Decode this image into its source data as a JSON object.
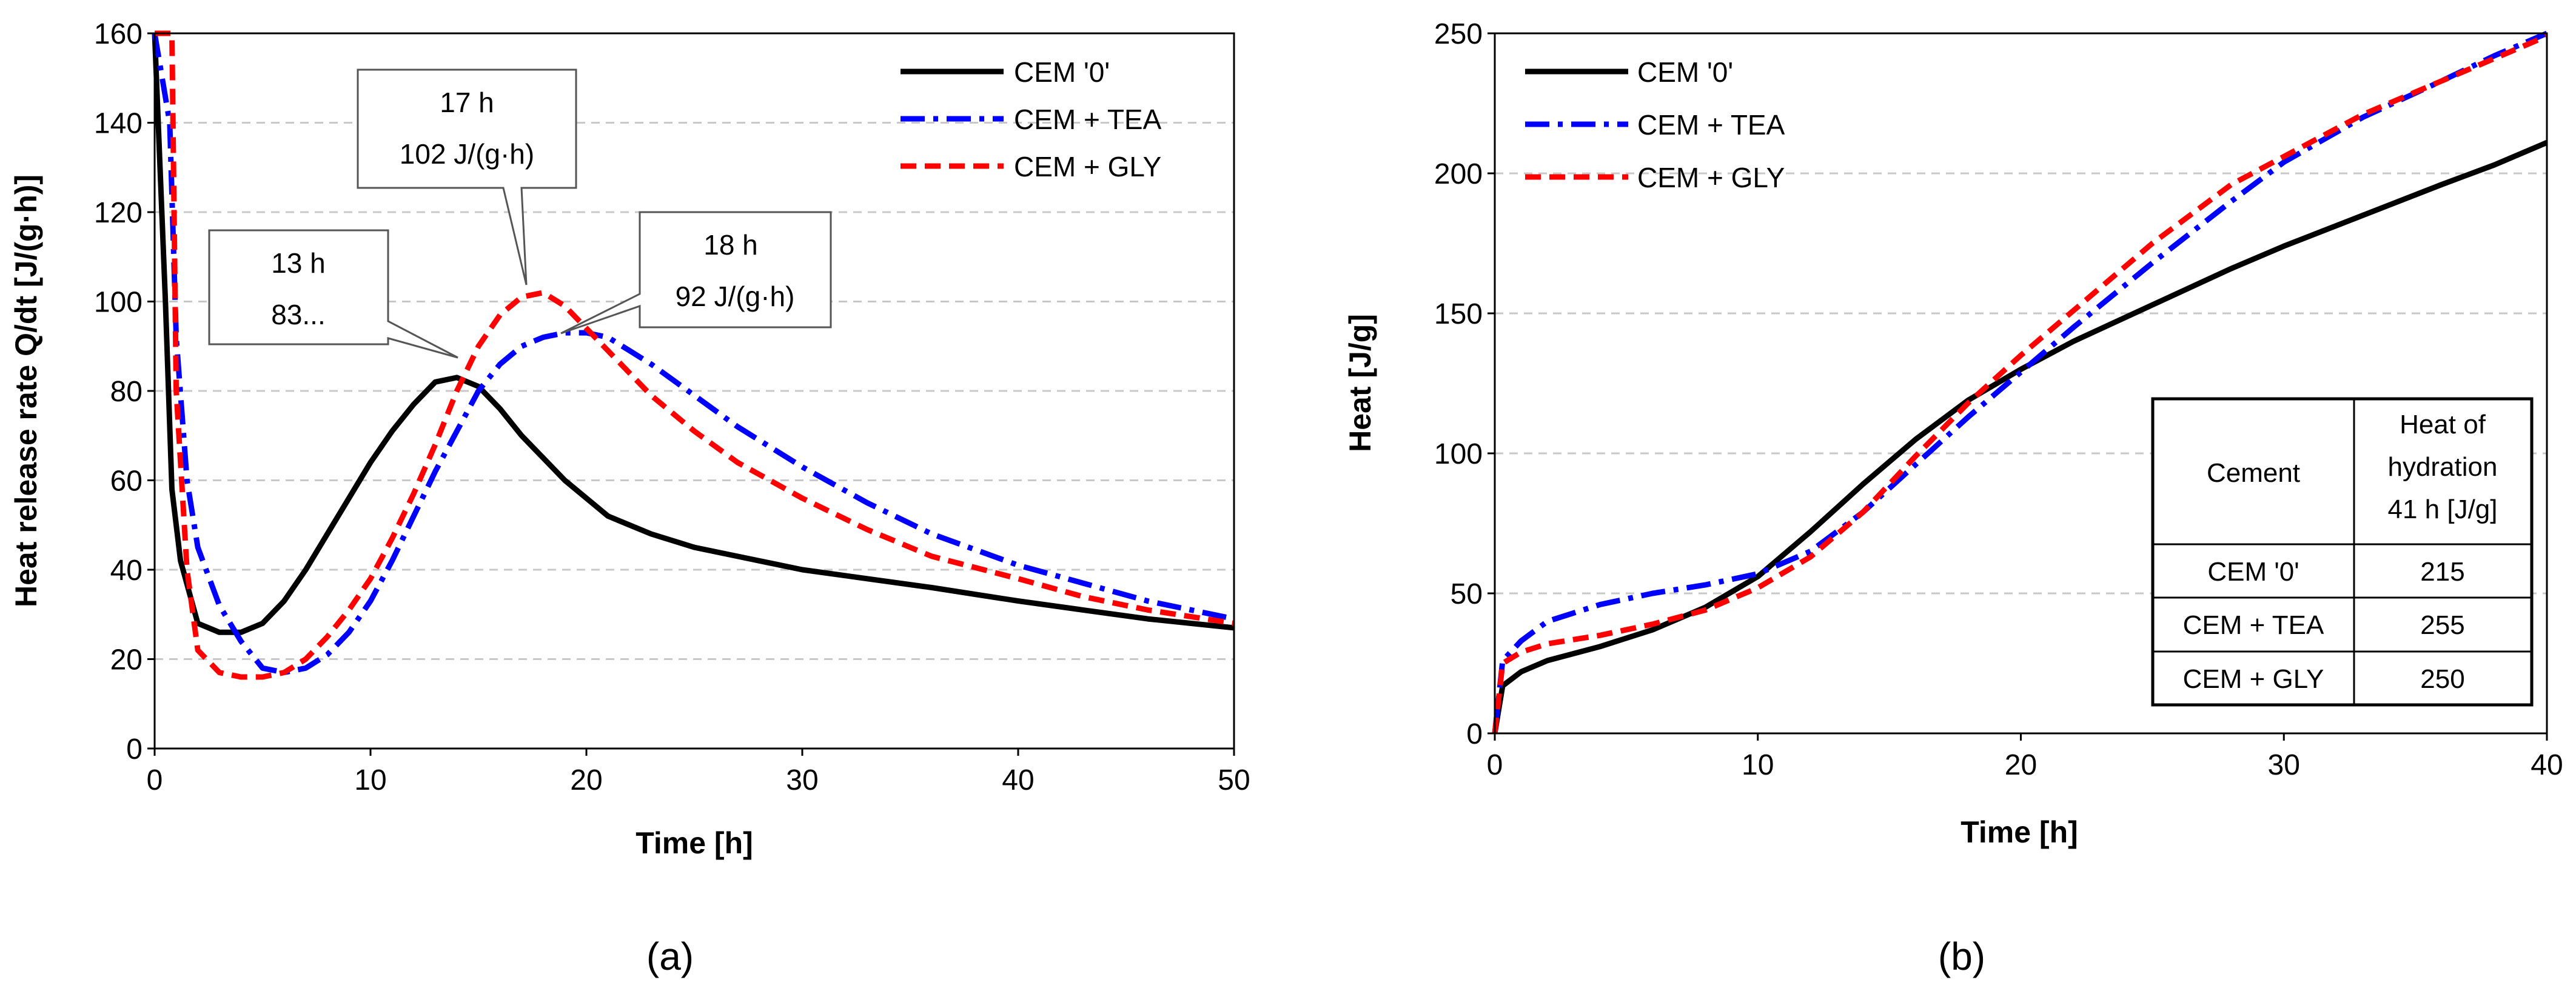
{
  "chart_data": [
    {
      "type": "line",
      "title": "",
      "caption": "(a)",
      "xlabel": "Time [h]",
      "ylabel": "Heat release rate  Q/dt [J/(g·h)]",
      "xlim": [
        0,
        50
      ],
      "ylim": [
        0,
        160
      ],
      "xticks": [
        "0",
        "10",
        "20",
        "30",
        "40",
        "50"
      ],
      "yticks": [
        "0",
        "20",
        "40",
        "60",
        "80",
        "100",
        "120",
        "140",
        "160"
      ],
      "grid": "horizontal dashed",
      "legend_position": "top-right",
      "series": [
        {
          "name": "CEM '0'",
          "color": "#000000",
          "style": "solid",
          "points": [
            [
              0,
              160
            ],
            [
              0.5,
              100
            ],
            [
              0.8,
              58
            ],
            [
              1.2,
              42
            ],
            [
              2,
              28
            ],
            [
              3,
              26
            ],
            [
              4,
              26
            ],
            [
              5,
              28
            ],
            [
              6,
              33
            ],
            [
              7,
              40
            ],
            [
              8,
              48
            ],
            [
              9,
              56
            ],
            [
              10,
              64
            ],
            [
              11,
              71
            ],
            [
              12,
              77
            ],
            [
              13,
              82
            ],
            [
              14,
              83
            ],
            [
              15,
              81
            ],
            [
              16,
              76
            ],
            [
              17,
              70
            ],
            [
              18,
              65
            ],
            [
              19,
              60
            ],
            [
              20,
              56
            ],
            [
              21,
              52
            ],
            [
              22,
              50
            ],
            [
              23,
              48
            ],
            [
              25,
              45
            ],
            [
              27,
              43
            ],
            [
              30,
              40
            ],
            [
              33,
              38
            ],
            [
              36,
              36
            ],
            [
              40,
              33
            ],
            [
              43,
              31
            ],
            [
              46,
              29
            ],
            [
              50,
              27
            ]
          ]
        },
        {
          "name": "CEM + TEA",
          "color": "#0000ff",
          "style": "dash-dot",
          "points": [
            [
              0,
              160
            ],
            [
              0.7,
              140
            ],
            [
              1,
              92
            ],
            [
              1.5,
              60
            ],
            [
              2,
              45
            ],
            [
              3,
              32
            ],
            [
              4,
              24
            ],
            [
              5,
              18
            ],
            [
              6,
              17
            ],
            [
              7,
              18
            ],
            [
              8,
              21
            ],
            [
              9,
              26
            ],
            [
              10,
              33
            ],
            [
              11,
              42
            ],
            [
              12,
              52
            ],
            [
              13,
              62
            ],
            [
              14,
              71
            ],
            [
              15,
              80
            ],
            [
              16,
              86
            ],
            [
              17,
              90
            ],
            [
              18,
              92
            ],
            [
              19,
              93
            ],
            [
              20,
              93
            ],
            [
              21,
              92
            ],
            [
              22,
              89
            ],
            [
              23,
              86
            ],
            [
              25,
              79
            ],
            [
              27,
              72
            ],
            [
              30,
              63
            ],
            [
              33,
              55
            ],
            [
              36,
              48
            ],
            [
              40,
              41
            ],
            [
              43,
              37
            ],
            [
              46,
              33
            ],
            [
              50,
              29
            ]
          ]
        },
        {
          "name": "CEM + GLY",
          "color": "#ff0000",
          "style": "dashed",
          "points": [
            [
              0,
              160
            ],
            [
              0.8,
              160
            ],
            [
              1,
              80
            ],
            [
              1.5,
              40
            ],
            [
              2,
              22
            ],
            [
              3,
              17
            ],
            [
              4,
              16
            ],
            [
              5,
              16
            ],
            [
              6,
              17
            ],
            [
              7,
              20
            ],
            [
              8,
              25
            ],
            [
              9,
              31
            ],
            [
              10,
              38
            ],
            [
              11,
              47
            ],
            [
              12,
              57
            ],
            [
              13,
              68
            ],
            [
              14,
              80
            ],
            [
              15,
              90
            ],
            [
              16,
              97
            ],
            [
              17,
              101
            ],
            [
              18,
              102
            ],
            [
              19,
              99
            ],
            [
              20,
              94
            ],
            [
              21,
              89
            ],
            [
              22,
              84
            ],
            [
              23,
              79
            ],
            [
              25,
              71
            ],
            [
              27,
              64
            ],
            [
              30,
              56
            ],
            [
              33,
              49
            ],
            [
              36,
              43
            ],
            [
              40,
              38
            ],
            [
              43,
              34
            ],
            [
              46,
              31
            ],
            [
              50,
              28
            ]
          ]
        }
      ],
      "annotations": [
        {
          "line1": "13 h",
          "line2": "83...",
          "target": [
            13,
            82
          ]
        },
        {
          "line1": "17 h",
          "line2": "102 J/(g·h)",
          "target": [
            17.3,
            102
          ]
        },
        {
          "line1": "18 h",
          "line2": "92 J/(g·h)",
          "target": [
            18.5,
            92
          ]
        }
      ]
    },
    {
      "type": "line",
      "title": "",
      "caption": "(b)",
      "xlabel": "Time [h]",
      "ylabel": "Heat [J/g]",
      "xlim": [
        0,
        40
      ],
      "ylim": [
        0,
        250
      ],
      "xticks": [
        "0",
        "10",
        "20",
        "30",
        "40"
      ],
      "yticks": [
        "0",
        "50",
        "100",
        "150",
        "200",
        "250"
      ],
      "grid": "horizontal dashed",
      "legend_position": "top-left",
      "series": [
        {
          "name": "CEM '0'",
          "color": "#000000",
          "style": "solid",
          "points": [
            [
              0,
              0
            ],
            [
              0.3,
              17
            ],
            [
              1,
              22
            ],
            [
              2,
              26
            ],
            [
              4,
              31
            ],
            [
              6,
              37
            ],
            [
              8,
              45
            ],
            [
              10,
              56
            ],
            [
              12,
              72
            ],
            [
              14,
              89
            ],
            [
              16,
              105
            ],
            [
              18,
              119
            ],
            [
              20,
              130
            ],
            [
              22,
              140
            ],
            [
              25,
              153
            ],
            [
              28,
              166
            ],
            [
              30,
              174
            ],
            [
              33,
              185
            ],
            [
              36,
              196
            ],
            [
              38,
              203
            ],
            [
              40,
              211
            ]
          ]
        },
        {
          "name": "CEM + TEA",
          "color": "#0000ff",
          "style": "dash-dot",
          "points": [
            [
              0,
              0
            ],
            [
              0.3,
              26
            ],
            [
              1,
              33
            ],
            [
              2,
              40
            ],
            [
              4,
              46
            ],
            [
              6,
              50
            ],
            [
              8,
              53
            ],
            [
              10,
              57
            ],
            [
              12,
              65
            ],
            [
              14,
              79
            ],
            [
              16,
              96
            ],
            [
              18,
              113
            ],
            [
              20,
              129
            ],
            [
              22,
              145
            ],
            [
              25,
              168
            ],
            [
              28,
              190
            ],
            [
              30,
              204
            ],
            [
              33,
              220
            ],
            [
              36,
              233
            ],
            [
              38,
              242
            ],
            [
              40,
              251
            ]
          ]
        },
        {
          "name": "CEM + GLY",
          "color": "#ff0000",
          "style": "dashed",
          "points": [
            [
              0,
              0
            ],
            [
              0.3,
              25
            ],
            [
              1,
              29
            ],
            [
              2,
              32
            ],
            [
              4,
              35
            ],
            [
              6,
              39
            ],
            [
              8,
              44
            ],
            [
              10,
              52
            ],
            [
              12,
              63
            ],
            [
              14,
              79
            ],
            [
              16,
              99
            ],
            [
              18,
              118
            ],
            [
              20,
              135
            ],
            [
              22,
              151
            ],
            [
              25,
              175
            ],
            [
              28,
              196
            ],
            [
              30,
              206
            ],
            [
              33,
              221
            ],
            [
              36,
              233
            ],
            [
              38,
              241
            ],
            [
              40,
              249
            ]
          ]
        }
      ],
      "table": {
        "headers": [
          "Cement",
          "Heat of hydration 41 h [J/g]"
        ],
        "header_lines": [
          "Heat of",
          "hydration",
          "41 h [J/g]"
        ],
        "rows": [
          [
            "CEM '0'",
            "215"
          ],
          [
            "CEM + TEA",
            "255"
          ],
          [
            "CEM + GLY",
            "250"
          ]
        ]
      }
    }
  ]
}
